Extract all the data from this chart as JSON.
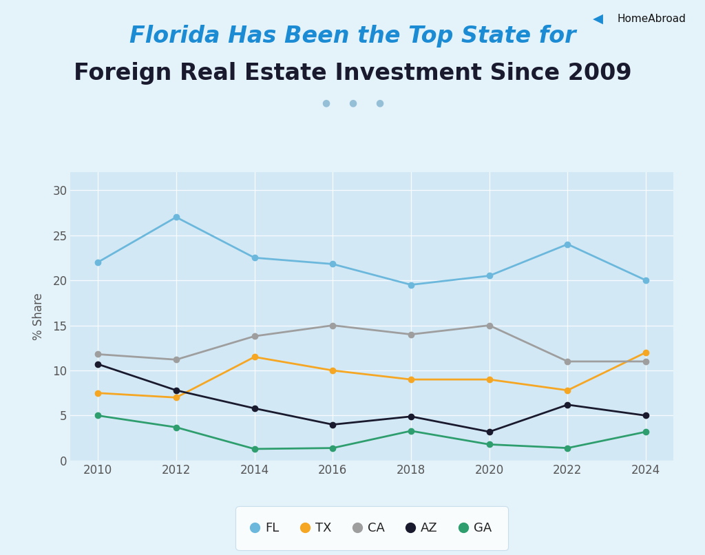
{
  "title_line1": "Florida Has Been the Top State for",
  "title_line2": "Foreign Real Estate Investment Since 2009",
  "title_line1_color": "#1B8BD4",
  "title_line2_color": "#1a1a2e",
  "ylabel": "% Share",
  "background_color": "#e4f2fa",
  "plot_background_color": "#d3e8f5",
  "years": [
    2010,
    2012,
    2014,
    2016,
    2018,
    2020,
    2022,
    2024
  ],
  "series": {
    "FL": {
      "values": [
        22,
        27,
        22.5,
        21.8,
        19.5,
        20.5,
        24,
        20
      ],
      "color": "#6bb8dc",
      "marker": "o",
      "linewidth": 2
    },
    "TX": {
      "values": [
        7.5,
        7,
        11.5,
        10,
        9,
        9,
        7.8,
        12
      ],
      "color": "#f5a623",
      "marker": "o",
      "linewidth": 2
    },
    "CA": {
      "values": [
        11.8,
        11.2,
        13.8,
        15,
        14,
        15,
        11,
        11
      ],
      "color": "#9e9e9e",
      "marker": "o",
      "linewidth": 2
    },
    "AZ": {
      "values": [
        10.7,
        7.8,
        5.8,
        4,
        4.9,
        3.2,
        6.2,
        5
      ],
      "color": "#1a1a2e",
      "marker": "o",
      "linewidth": 2
    },
    "GA": {
      "values": [
        5,
        3.7,
        1.3,
        1.4,
        3.3,
        1.8,
        1.4,
        3.2
      ],
      "color": "#2e9e6e",
      "marker": "o",
      "linewidth": 2
    }
  },
  "ylim": [
    0,
    32
  ],
  "yticks": [
    0,
    5,
    10,
    15,
    20,
    25,
    30
  ],
  "xticks": [
    2010,
    2012,
    2014,
    2016,
    2018,
    2020,
    2022,
    2024
  ],
  "legend_order": [
    "FL",
    "TX",
    "CA",
    "AZ",
    "GA"
  ],
  "dots_color": "#7aaecc",
  "marker_size": 6,
  "title_fontsize": 24,
  "tick_fontsize": 12,
  "ylabel_fontsize": 12
}
